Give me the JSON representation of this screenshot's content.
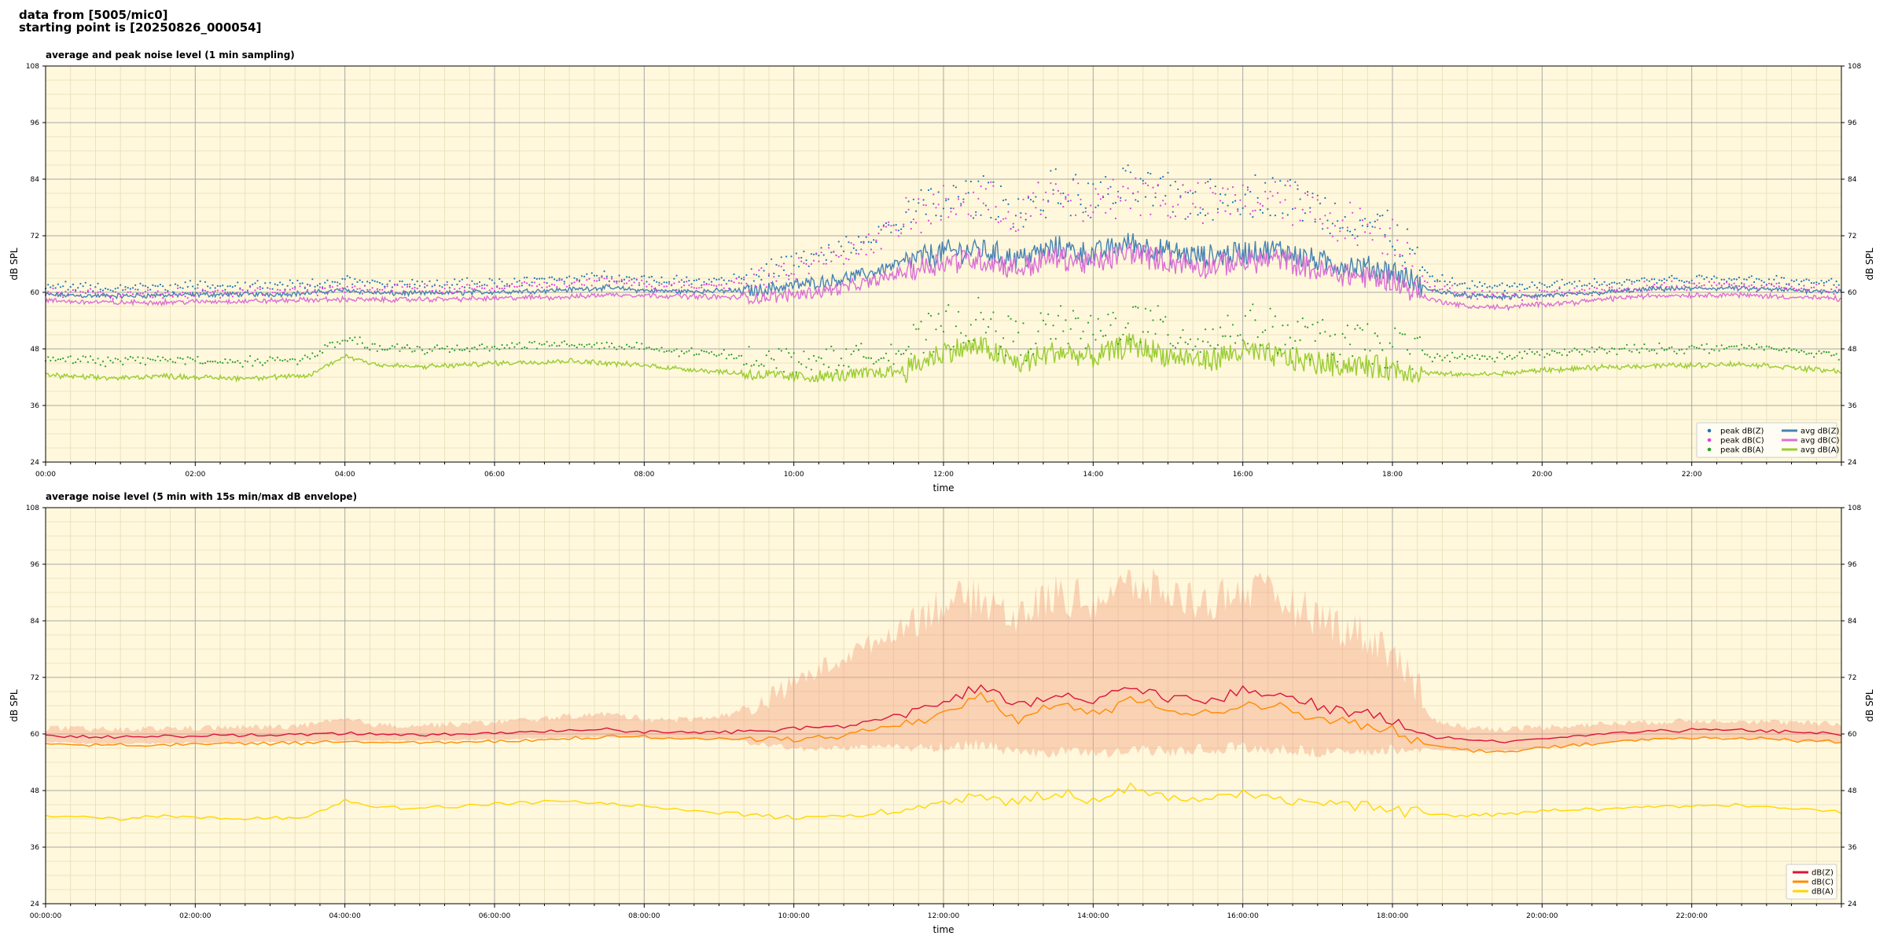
{
  "header": {
    "line1": "data from [5005/mic0]",
    "line2": "starting point is [20250826_000054]"
  },
  "colors": {
    "background": "#fff8dc",
    "grid_major": "#a8a8a8",
    "grid_minor": "#e6dcb8",
    "peak_z": "#1f77b4",
    "peak_c": "#e040e0",
    "peak_a": "#2ca02c",
    "avg_z": "#4682b4",
    "avg_c": "#da70d6",
    "avg_a": "#9acd32",
    "env_z": "#dc143c",
    "env_c": "#ff8c00",
    "env_a": "#ffd700",
    "envelope": "#f4a582"
  },
  "chart_data": [
    {
      "type": "line",
      "title": "average and peak noise level (1 min sampling)",
      "xlabel": "time",
      "ylabel": "dB SPL",
      "xlim": [
        "00:00",
        "24:00"
      ],
      "ylim": [
        24,
        108
      ],
      "yticks": [
        24,
        36,
        48,
        60,
        72,
        84,
        96,
        108
      ],
      "xticks": [
        "00:00",
        "02:00",
        "04:00",
        "06:00",
        "08:00",
        "10:00",
        "12:00",
        "14:00",
        "16:00",
        "18:00",
        "20:00",
        "22:00"
      ],
      "grid": true,
      "legend_position": "lower right",
      "legend": [
        {
          "label": "peak dB(Z)",
          "kind": "marker",
          "color_key": "peak_z"
        },
        {
          "label": "peak dB(C)",
          "kind": "marker",
          "color_key": "peak_c"
        },
        {
          "label": "peak dB(A)",
          "kind": "marker",
          "color_key": "peak_a"
        },
        {
          "label": "avg dB(Z)",
          "kind": "line",
          "color_key": "avg_z"
        },
        {
          "label": "avg dB(C)",
          "kind": "line",
          "color_key": "avg_c"
        },
        {
          "label": "avg dB(A)",
          "kind": "line",
          "color_key": "avg_a"
        }
      ],
      "x_hours": [
        0,
        0.5,
        1,
        1.5,
        2,
        2.5,
        3,
        3.5,
        4,
        4.5,
        5,
        5.5,
        6,
        6.5,
        7,
        7.5,
        8,
        8.5,
        9,
        9.5,
        10,
        10.5,
        11,
        11.5,
        12,
        12.5,
        13,
        13.5,
        14,
        14.5,
        15,
        15.5,
        16,
        16.5,
        17,
        17.5,
        18,
        18.5,
        19,
        19.5,
        20,
        20.5,
        21,
        21.5,
        22,
        22.5,
        23,
        23.5,
        24
      ],
      "series": [
        {
          "name": "avg dB(Z)",
          "color_key": "avg_z",
          "marker": "line",
          "values": [
            59.5,
            59.3,
            59.2,
            59.4,
            59.5,
            59.6,
            59.6,
            59.8,
            60.5,
            59.8,
            59.8,
            59.9,
            60.1,
            60.3,
            60.6,
            61.0,
            60.4,
            60.2,
            60.3,
            60.4,
            61.5,
            62.5,
            64.0,
            66.5,
            68.5,
            69.0,
            67.0,
            69.5,
            68.0,
            70.5,
            68.5,
            67.5,
            68.5,
            69.0,
            66.5,
            65.5,
            64.5,
            60.5,
            59.3,
            59.0,
            59.3,
            59.6,
            60.2,
            60.7,
            60.8,
            60.9,
            60.6,
            60.4,
            60.2
          ]
        },
        {
          "name": "avg dB(C)",
          "color_key": "avg_c",
          "marker": "line",
          "values": [
            58.2,
            58.0,
            57.8,
            57.9,
            58.0,
            58.1,
            58.2,
            58.4,
            58.5,
            58.4,
            58.5,
            58.6,
            58.7,
            58.9,
            59.0,
            59.5,
            59.4,
            59.2,
            59.0,
            58.8,
            59.5,
            60.5,
            62.0,
            64.5,
            66.5,
            67.0,
            65.0,
            67.5,
            66.0,
            68.5,
            66.5,
            65.5,
            66.5,
            67.0,
            64.5,
            63.5,
            62.5,
            58.5,
            57.0,
            56.8,
            57.5,
            58.0,
            58.8,
            59.3,
            59.4,
            59.5,
            59.2,
            58.9,
            58.6
          ]
        },
        {
          "name": "avg dB(A)",
          "color_key": "avg_a",
          "marker": "line",
          "values": [
            42.5,
            42.0,
            41.8,
            42.3,
            42.0,
            41.8,
            42.0,
            42.2,
            46.5,
            44.5,
            44.2,
            44.5,
            45.0,
            45.2,
            45.5,
            45.0,
            44.5,
            43.8,
            43.2,
            42.5,
            42.0,
            42.2,
            42.8,
            43.5,
            47.5,
            48.5,
            44.8,
            47.5,
            46.0,
            49.0,
            46.5,
            45.5,
            47.5,
            46.2,
            45.0,
            44.5,
            43.8,
            42.8,
            42.5,
            42.8,
            43.5,
            43.8,
            44.2,
            44.5,
            44.5,
            44.8,
            44.5,
            43.8,
            43.2
          ]
        },
        {
          "name": "peak dB(Z)",
          "color_key": "peak_z",
          "marker": "point",
          "values": [
            61.2,
            61.0,
            60.9,
            61.1,
            61.2,
            61.3,
            61.4,
            61.6,
            62.5,
            61.6,
            61.6,
            61.8,
            62.0,
            62.3,
            62.8,
            63.4,
            62.6,
            62.4,
            62.6,
            63.5,
            66.0,
            68.0,
            71.0,
            75.5,
            79.0,
            80.0,
            77.0,
            81.0,
            79.0,
            82.0,
            80.0,
            79.0,
            80.0,
            80.5,
            77.0,
            75.0,
            72.5,
            63.0,
            61.5,
            61.0,
            61.4,
            61.8,
            62.2,
            62.6,
            62.8,
            62.9,
            62.6,
            62.3,
            62.0
          ]
        },
        {
          "name": "peak dB(C)",
          "color_key": "peak_c",
          "marker": "point",
          "values": [
            60.0,
            59.8,
            59.6,
            59.8,
            59.9,
            60.0,
            60.1,
            60.3,
            60.8,
            60.5,
            60.6,
            60.8,
            61.0,
            61.3,
            61.8,
            62.4,
            61.6,
            61.4,
            61.6,
            62.5,
            65.0,
            67.0,
            70.0,
            74.5,
            78.0,
            79.0,
            76.0,
            80.0,
            78.0,
            81.0,
            79.0,
            78.0,
            79.0,
            79.5,
            76.0,
            74.0,
            71.5,
            61.5,
            59.5,
            59.0,
            59.8,
            60.3,
            60.8,
            61.2,
            61.4,
            61.5,
            61.2,
            60.9,
            60.6
          ]
        },
        {
          "name": "peak dB(A)",
          "color_key": "peak_a",
          "marker": "point",
          "values": [
            46.0,
            45.5,
            45.2,
            45.8,
            45.5,
            45.2,
            45.5,
            45.8,
            50.0,
            48.0,
            47.8,
            48.0,
            48.5,
            48.8,
            49.0,
            48.5,
            48.0,
            47.3,
            46.8,
            46.0,
            45.5,
            45.8,
            46.5,
            47.5,
            52.0,
            53.5,
            49.0,
            52.5,
            50.5,
            54.0,
            51.0,
            50.0,
            52.5,
            51.0,
            49.5,
            48.5,
            47.8,
            46.5,
            46.0,
            46.3,
            47.0,
            47.3,
            47.8,
            48.0,
            48.0,
            48.3,
            48.0,
            47.3,
            46.8
          ]
        }
      ]
    },
    {
      "type": "line",
      "title": "average noise level (5 min with 15s min/max dB envelope)",
      "xlabel": "time",
      "ylabel": "dB SPL",
      "xlim": [
        "00:00:00",
        "24:00:00"
      ],
      "ylim": [
        24,
        108
      ],
      "yticks": [
        24,
        36,
        48,
        60,
        72,
        84,
        96,
        108
      ],
      "xticks": [
        "00:00:00",
        "02:00:00",
        "04:00:00",
        "06:00:00",
        "08:00:00",
        "10:00:00",
        "12:00:00",
        "14:00:00",
        "16:00:00",
        "18:00:00",
        "20:00:00",
        "22:00:00"
      ],
      "grid": true,
      "legend_position": "lower right",
      "legend": [
        {
          "label": "dB(Z)",
          "kind": "line",
          "color_key": "env_z"
        },
        {
          "label": "dB(C)",
          "kind": "line",
          "color_key": "env_c"
        },
        {
          "label": "dB(A)",
          "kind": "line",
          "color_key": "env_a"
        }
      ],
      "x_hours": [
        0,
        0.5,
        1,
        1.5,
        2,
        2.5,
        3,
        3.5,
        4,
        4.5,
        5,
        5.5,
        6,
        6.5,
        7,
        7.5,
        8,
        8.5,
        9,
        9.5,
        10,
        10.5,
        11,
        11.5,
        12,
        12.5,
        13,
        13.5,
        14,
        14.5,
        15,
        15.5,
        16,
        16.5,
        17,
        17.5,
        18,
        18.5,
        19,
        19.5,
        20,
        20.5,
        21,
        21.5,
        22,
        22.5,
        23,
        23.5,
        24
      ],
      "envelope": {
        "min": [
          58.5,
          58.2,
          58.0,
          58.2,
          58.3,
          58.4,
          58.5,
          58.6,
          58.8,
          58.7,
          58.8,
          58.9,
          59.0,
          59.2,
          59.4,
          59.6,
          59.4,
          59.2,
          59.0,
          58.8,
          57.5,
          57.5,
          58.0,
          58.0,
          58.5,
          59.0,
          57.0,
          57.5,
          57.0,
          58.0,
          57.5,
          58.0,
          58.5,
          58.0,
          57.5,
          57.8,
          58.0,
          57.0,
          56.5,
          56.5,
          57.2,
          57.8,
          58.5,
          59.0,
          59.2,
          59.3,
          59.0,
          58.7,
          58.4
        ],
        "max": [
          61.0,
          60.8,
          60.6,
          60.9,
          61.0,
          61.1,
          61.2,
          61.5,
          62.8,
          61.5,
          61.6,
          61.8,
          62.2,
          62.8,
          63.5,
          64.0,
          63.0,
          62.8,
          63.5,
          65.0,
          70.0,
          74.0,
          78.0,
          82.0,
          86.0,
          87.0,
          83.0,
          88.0,
          86.0,
          90.0,
          88.0,
          86.0,
          89.0,
          87.0,
          83.0,
          80.0,
          76.0,
          63.0,
          61.0,
          60.8,
          61.2,
          61.6,
          62.0,
          62.3,
          62.5,
          62.6,
          62.3,
          62.0,
          61.8
        ]
      },
      "series": [
        {
          "name": "dB(Z)",
          "color_key": "env_z",
          "marker": "line",
          "values": [
            59.6,
            59.4,
            59.3,
            59.5,
            59.6,
            59.7,
            59.7,
            59.9,
            60.2,
            59.9,
            59.9,
            60.0,
            60.2,
            60.5,
            60.8,
            61.0,
            60.4,
            60.3,
            60.4,
            60.6,
            61.2,
            61.8,
            62.5,
            64.5,
            67.0,
            70.0,
            65.5,
            68.5,
            66.5,
            70.0,
            68.0,
            66.5,
            69.0,
            68.5,
            66.0,
            64.5,
            63.0,
            59.5,
            58.8,
            58.5,
            59.0,
            59.5,
            60.2,
            60.6,
            60.8,
            60.9,
            60.6,
            60.3,
            60.0
          ]
        },
        {
          "name": "dB(C)",
          "color_key": "env_c",
          "marker": "line",
          "values": [
            58.0,
            57.8,
            57.6,
            57.7,
            57.8,
            57.9,
            58.0,
            58.2,
            58.3,
            58.2,
            58.3,
            58.4,
            58.5,
            58.7,
            59.0,
            59.4,
            59.3,
            59.1,
            58.9,
            58.7,
            59.0,
            59.5,
            60.5,
            62.5,
            64.5,
            67.5,
            63.0,
            66.5,
            64.0,
            67.5,
            65.5,
            64.0,
            66.5,
            66.0,
            63.5,
            62.0,
            60.5,
            57.5,
            56.5,
            56.2,
            57.0,
            57.6,
            58.4,
            58.9,
            59.1,
            59.2,
            58.9,
            58.6,
            58.3
          ]
        },
        {
          "name": "dB(A)",
          "color_key": "env_a",
          "marker": "line",
          "values": [
            42.8,
            42.3,
            42.0,
            42.5,
            42.2,
            42.0,
            42.2,
            42.5,
            46.0,
            44.5,
            44.3,
            44.6,
            45.2,
            45.5,
            45.8,
            45.2,
            44.7,
            44.0,
            43.4,
            42.8,
            42.3,
            42.4,
            43.0,
            43.8,
            46.0,
            47.0,
            45.0,
            47.8,
            46.2,
            48.5,
            46.8,
            45.8,
            47.5,
            46.5,
            45.2,
            44.7,
            44.0,
            43.0,
            42.7,
            43.0,
            43.7,
            44.0,
            44.4,
            44.7,
            44.7,
            45.0,
            44.7,
            44.0,
            43.4
          ]
        }
      ]
    }
  ]
}
